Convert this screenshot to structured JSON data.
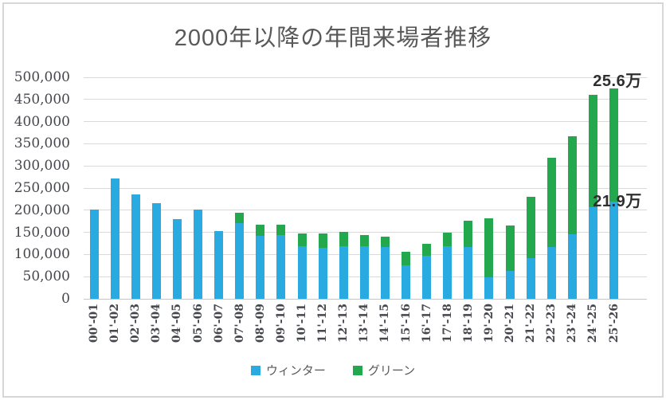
{
  "title": "2000年以降の年間来場者推移",
  "legend": {
    "items": [
      {
        "label": "ウィンター",
        "color": "#29ABE2"
      },
      {
        "label": "グリーン",
        "color": "#23A84D"
      }
    ]
  },
  "annotations": [
    {
      "text": "25.6万",
      "anchor_value": 475000
    },
    {
      "text": "21.9万",
      "anchor_value": 219000
    }
  ],
  "colors": {
    "winter": "#29ABE2",
    "green": "#23A84D",
    "gridline": "#D9D9D9",
    "axis_line": "#C6C6C6",
    "title_text": "#595959",
    "axis_text": "#45474D",
    "data_label_text": "#2E2E2E"
  },
  "chart_data": {
    "type": "bar",
    "stacked": true,
    "title": "2000年以降の年間来場者推移",
    "categories": [
      "00'-01",
      "01'-02",
      "02'-03",
      "03'-04",
      "04'-05",
      "05'-06",
      "06'-07",
      "07'-08",
      "08'-09",
      "09'-10",
      "10'-11",
      "11'-12",
      "12'-13",
      "13'-14",
      "14'-15",
      "15'-16",
      "16'-17",
      "17'-18",
      "18'-19",
      "19'-20",
      "20'-21",
      "21'-22",
      "22'-23",
      "23'-24",
      "24'-25",
      "25'-26"
    ],
    "series": [
      {
        "name": "ウィンター",
        "color": "#29ABE2",
        "values": [
          202000,
          272000,
          235000,
          215000,
          179000,
          201000,
          153000,
          170000,
          142000,
          144000,
          118000,
          115000,
          119000,
          118000,
          117000,
          75000,
          97000,
          119000,
          117000,
          48000,
          63000,
          92000,
          117000,
          146000,
          207000,
          219000
        ]
      },
      {
        "name": "グリーン",
        "color": "#23A84D",
        "values": [
          0,
          0,
          0,
          0,
          0,
          0,
          0,
          24000,
          26000,
          23000,
          30000,
          33000,
          32000,
          26000,
          24000,
          31000,
          27000,
          30000,
          60000,
          133000,
          103000,
          139000,
          201000,
          221000,
          254000,
          256000
        ]
      }
    ],
    "xlabel": "",
    "ylabel": "",
    "ylim": [
      0,
      500000
    ],
    "ytick_step": 50000,
    "ytick_labels": [
      "0",
      "50,000",
      "100,000",
      "150,000",
      "200,000",
      "250,000",
      "300,000",
      "350,000",
      "400,000",
      "450,000",
      "500,000"
    ],
    "grid": true,
    "legend_position": "bottom",
    "data_labels": [
      {
        "text": "25.6万",
        "series": "グリーン",
        "category": "25'-26",
        "value": 256000
      },
      {
        "text": "21.9万",
        "series": "ウィンター",
        "category": "25'-26",
        "value": 219000
      }
    ]
  }
}
